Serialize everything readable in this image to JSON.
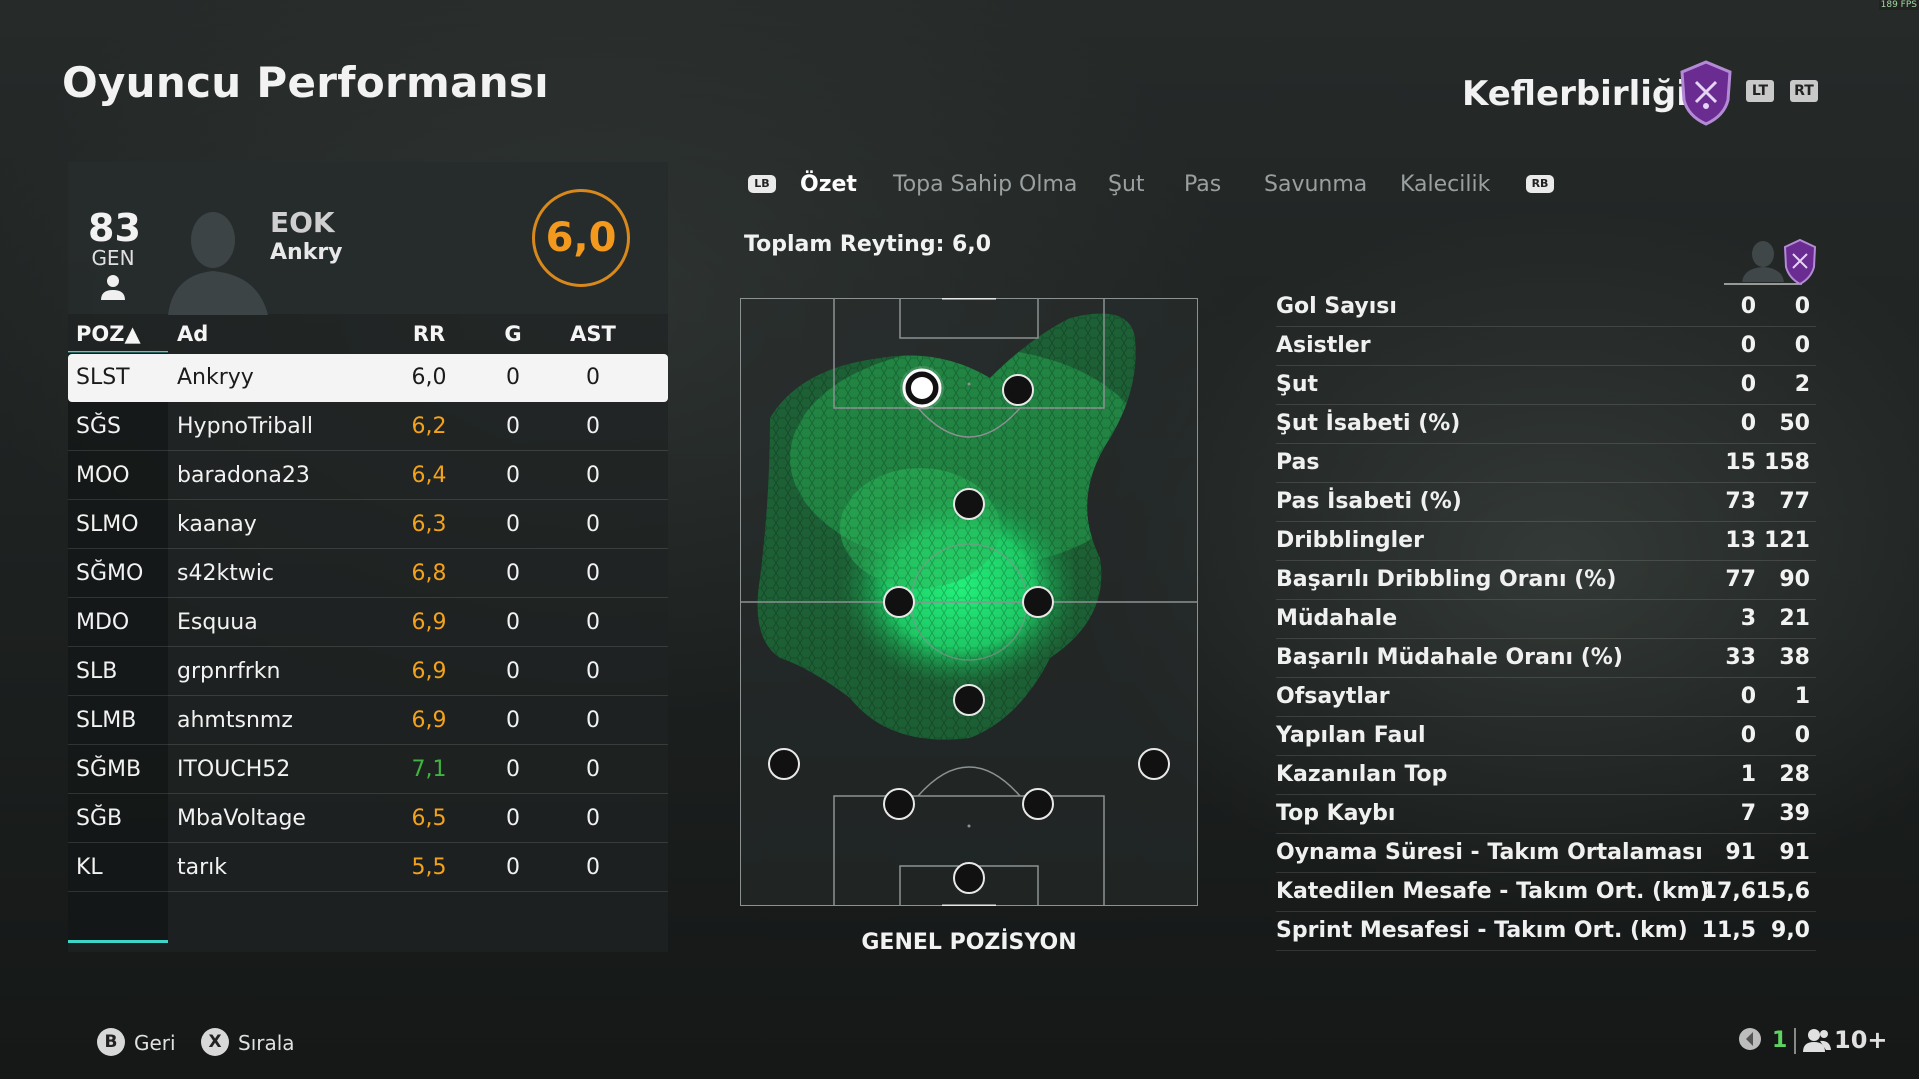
{
  "page_title": "Oyuncu Performansı",
  "club": {
    "name": "Keflerbirliği",
    "crest_icon": "club-crest-icon",
    "crest_color": "#6a2c91"
  },
  "triggers": {
    "lt": "LT",
    "rt": "RT"
  },
  "fps": "189 FPS",
  "selected_player": {
    "overall": "83",
    "overall_label": "GEN",
    "short_name": "EOK",
    "name": "Ankry",
    "rating": "6,0"
  },
  "table": {
    "headers": {
      "poz": "POZ▲",
      "name": "Ad",
      "rr": "RR",
      "g": "G",
      "ast": "AST"
    },
    "rows": [
      {
        "poz": "SLST",
        "name": "Ankryy",
        "rr": "6,0",
        "g": "0",
        "ast": "0",
        "rr_color": "#1b1b1b"
      },
      {
        "poz": "SĞS",
        "name": "HypnoTriball",
        "rr": "6,2",
        "g": "0",
        "ast": "0",
        "rr_color": "#f3a21c"
      },
      {
        "poz": "MOO",
        "name": "baradona23",
        "rr": "6,4",
        "g": "0",
        "ast": "0",
        "rr_color": "#f3a21c"
      },
      {
        "poz": "SLMO",
        "name": "kaanay",
        "rr": "6,3",
        "g": "0",
        "ast": "0",
        "rr_color": "#f3a21c"
      },
      {
        "poz": "SĞMO",
        "name": "s42ktwic",
        "rr": "6,8",
        "g": "0",
        "ast": "0",
        "rr_color": "#f3a21c"
      },
      {
        "poz": "MDO",
        "name": "Esquua",
        "rr": "6,9",
        "g": "0",
        "ast": "0",
        "rr_color": "#f3a21c"
      },
      {
        "poz": "SLB",
        "name": "grpnrfrkn",
        "rr": "6,9",
        "g": "0",
        "ast": "0",
        "rr_color": "#f3a21c"
      },
      {
        "poz": "SLMB",
        "name": "ahmtsnmz",
        "rr": "6,9",
        "g": "0",
        "ast": "0",
        "rr_color": "#f3a21c"
      },
      {
        "poz": "SĞMB",
        "name": "ITOUCH52",
        "rr": "7,1",
        "g": "0",
        "ast": "0",
        "rr_color": "#3fb43f"
      },
      {
        "poz": "SĞB",
        "name": "MbaVoltage",
        "rr": "6,5",
        "g": "0",
        "ast": "0",
        "rr_color": "#f3a21c"
      },
      {
        "poz": "KL",
        "name": "tarık",
        "rr": "5,5",
        "g": "0",
        "ast": "0",
        "rr_color": "#f3a21c"
      }
    ]
  },
  "tabs": {
    "lb": "LB",
    "rb": "RB",
    "items": [
      "Özet",
      "Topa Sahip Olma",
      "Şut",
      "Pas",
      "Savunma",
      "Kalecilik"
    ],
    "active": "Özet"
  },
  "total_rating": "Toplam Reyting: 6,0",
  "pitch_label": "GENEL POZİSYON",
  "stats": [
    {
      "label": "Gol Sayısı",
      "player": "0",
      "club": "0"
    },
    {
      "label": "Asistler",
      "player": "0",
      "club": "0"
    },
    {
      "label": "Şut",
      "player": "0",
      "club": "2"
    },
    {
      "label": "Şut İsabeti (%)",
      "player": "0",
      "club": "50"
    },
    {
      "label": "Pas",
      "player": "15",
      "club": "158"
    },
    {
      "label": "Pas İsabeti (%)",
      "player": "73",
      "club": "77"
    },
    {
      "label": "Dribblingler",
      "player": "13",
      "club": "121"
    },
    {
      "label": "Başarılı Dribbling Oranı (%)",
      "player": "77",
      "club": "90"
    },
    {
      "label": "Müdahale",
      "player": "3",
      "club": "21"
    },
    {
      "label": "Başarılı Müdahale Oranı (%)",
      "player": "33",
      "club": "38"
    },
    {
      "label": "Ofsaytlar",
      "player": "0",
      "club": "1"
    },
    {
      "label": "Yapılan Faul",
      "player": "0",
      "club": "0"
    },
    {
      "label": "Kazanılan Top",
      "player": "1",
      "club": "28"
    },
    {
      "label": "Top Kaybı",
      "player": "7",
      "club": "39"
    },
    {
      "label": "Oynama Süresi - Takım Ortalaması",
      "player": "91",
      "club": "91"
    },
    {
      "label": "Katedilen Mesafe - Takım Ort. (km)",
      "player": "17,6",
      "club": "15,6"
    },
    {
      "label": "Sprint Mesafesi - Takım Ort. (km)",
      "player": "11,5",
      "club": "9,0"
    }
  ],
  "footer": {
    "back_key": "B",
    "back_label": "Geri",
    "sort_key": "X",
    "sort_label": "Sırala",
    "party_count": "1",
    "players_label": "10+"
  }
}
